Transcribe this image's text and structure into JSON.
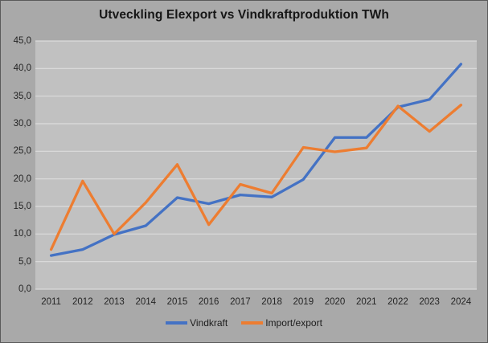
{
  "chart_data": {
    "type": "line",
    "title": "Utveckling Elexport vs Vindkraftproduktion TWh",
    "categories": [
      "2011",
      "2012",
      "2013",
      "2014",
      "2015",
      "2016",
      "2017",
      "2018",
      "2019",
      "2020",
      "2021",
      "2022",
      "2023",
      "2024"
    ],
    "series": [
      {
        "name": "Vindkraft",
        "color": "#4472C4",
        "values": [
          6.1,
          7.2,
          9.9,
          11.5,
          16.6,
          15.5,
          17.1,
          16.7,
          19.9,
          27.5,
          27.5,
          33.0,
          34.4,
          40.8
        ]
      },
      {
        "name": "Import/export",
        "color": "#ED7D31",
        "values": [
          7.2,
          19.6,
          10.0,
          15.7,
          22.6,
          11.7,
          19.0,
          17.4,
          25.7,
          24.9,
          25.6,
          33.2,
          28.6,
          33.4
        ]
      }
    ],
    "ylabel": "",
    "xlabel": "",
    "ylim": [
      0,
      45
    ],
    "ytick_step": 5,
    "ytick_labels": [
      "0,0",
      "5,0",
      "10,0",
      "15,0",
      "20,0",
      "25,0",
      "30,0",
      "35,0",
      "40,0",
      "45,0"
    ],
    "grid": true,
    "legend_position": "bottom",
    "colors": {
      "outer_background": "#a9a9a9",
      "plot_background": "#c1c1c1",
      "gridline": "#dcdcdc",
      "text": "#242424",
      "frame_border": "#5a5a5a"
    }
  }
}
